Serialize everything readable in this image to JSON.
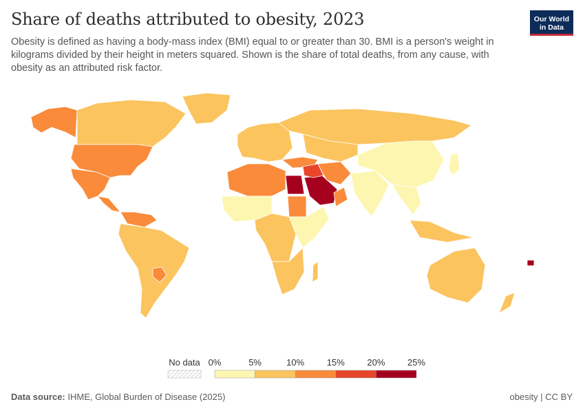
{
  "header": {
    "title": "Share of deaths attributed to obesity, 2023",
    "subtitle": "Obesity is defined as having a body-mass index (BMI) equal to or greater than 30. BMI is a person's weight in kilograms divided by their height in meters squared. Shown is the share of total deaths, from any cause, with obesity as an attributed risk factor."
  },
  "logo": {
    "line1": "Our World",
    "line2": "in Data"
  },
  "legend": {
    "no_data_label": "No data",
    "ticks": [
      "0%",
      "5%",
      "10%",
      "15%",
      "20%",
      "25%"
    ],
    "bins": [
      {
        "min": 0,
        "max": 5,
        "color": "#fdf6b0"
      },
      {
        "min": 5,
        "max": 10,
        "color": "#fbc45f"
      },
      {
        "min": 10,
        "max": 15,
        "color": "#f98b3a"
      },
      {
        "min": 15,
        "max": 20,
        "color": "#e8452a"
      },
      {
        "min": 20,
        "max": 25,
        "color": "#a6001f"
      }
    ],
    "no_data_color": "#e8e8e8"
  },
  "footer": {
    "source_label": "Data source:",
    "source_text": "IHME, Global Burden of Disease (2025)",
    "license": "obesity | CC BY"
  },
  "map_regions": [
    {
      "name": "Alaska",
      "bin": 2
    },
    {
      "name": "Canada",
      "bin": 1
    },
    {
      "name": "Greenland",
      "bin": 1
    },
    {
      "name": "United States",
      "bin": 2
    },
    {
      "name": "Mexico",
      "bin": 2
    },
    {
      "name": "Central America",
      "bin": 2
    },
    {
      "name": "Venezuela",
      "bin": 2
    },
    {
      "name": "South America",
      "bin": 1
    },
    {
      "name": "Paraguay",
      "bin": 2
    },
    {
      "name": "Europe",
      "bin": 1
    },
    {
      "name": "Russia",
      "bin": 1
    },
    {
      "name": "Central Asia",
      "bin": 1
    },
    {
      "name": "Turkey",
      "bin": 2
    },
    {
      "name": "North Africa",
      "bin": 2
    },
    {
      "name": "Egypt",
      "bin": 4
    },
    {
      "name": "Saudi Arabia",
      "bin": 4
    },
    {
      "name": "Iraq Syria",
      "bin": 3
    },
    {
      "name": "Iran",
      "bin": 2
    },
    {
      "name": "Oman",
      "bin": 2
    },
    {
      "name": "Sudan",
      "bin": 2
    },
    {
      "name": "West Africa",
      "bin": 0
    },
    {
      "name": "Central Africa",
      "bin": 1
    },
    {
      "name": "East Africa",
      "bin": 0
    },
    {
      "name": "Southern Africa",
      "bin": 1
    },
    {
      "name": "Madagascar",
      "bin": 1
    },
    {
      "name": "India",
      "bin": 0
    },
    {
      "name": "China",
      "bin": 0
    },
    {
      "name": "Southeast Asia",
      "bin": 0
    },
    {
      "name": "Malaysia",
      "bin": 1
    },
    {
      "name": "Japan",
      "bin": 0
    },
    {
      "name": "Australia",
      "bin": 1
    },
    {
      "name": "New Zealand",
      "bin": 1
    },
    {
      "name": "Pacific Islands",
      "bin": 4
    }
  ]
}
